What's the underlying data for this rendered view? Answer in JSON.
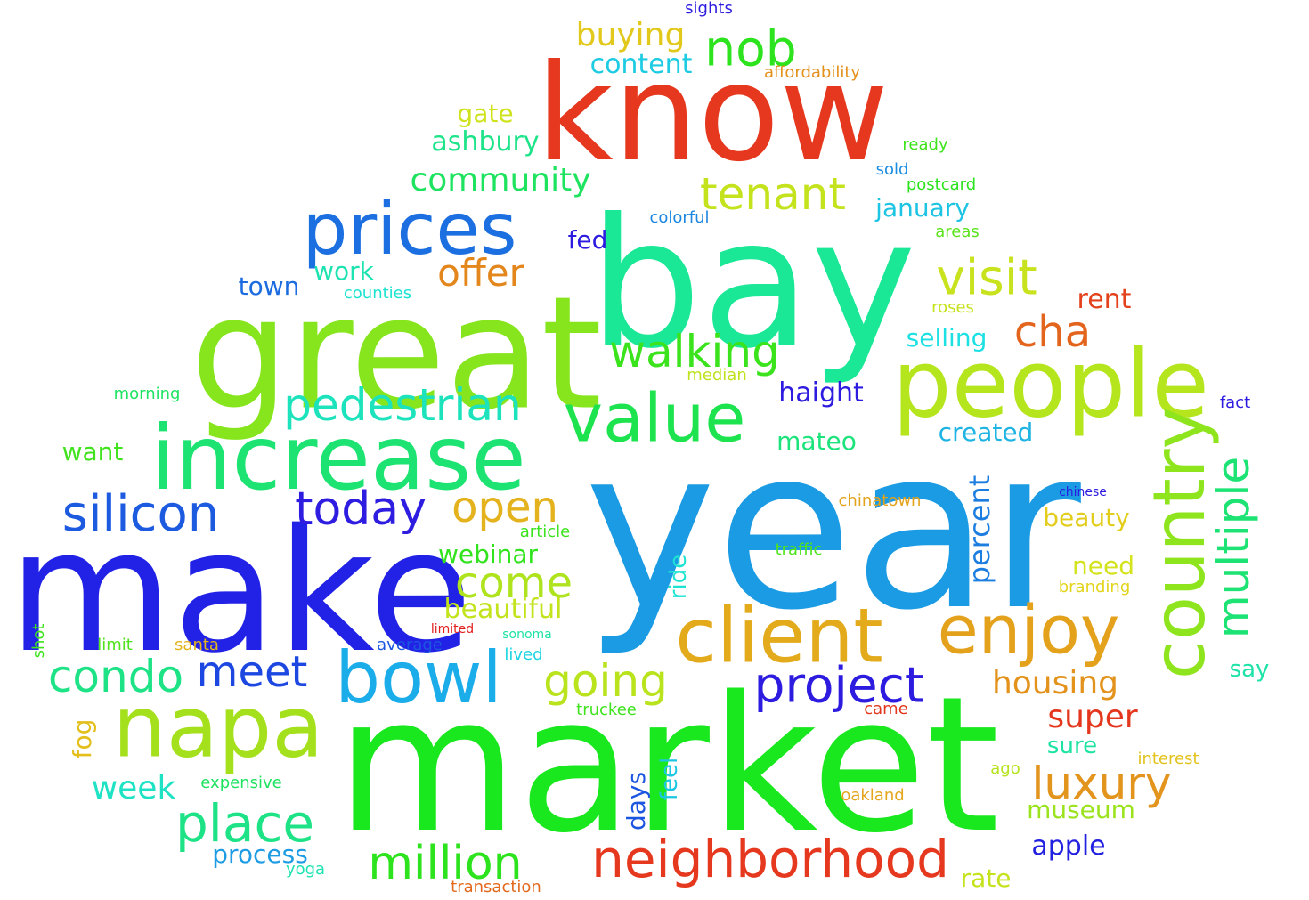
{
  "words": [
    {
      "text": "year",
      "color": "#1b9be3"
    },
    {
      "text": "market",
      "color": "#19e81e"
    },
    {
      "text": "make",
      "color": "#2222e6"
    },
    {
      "text": "know",
      "color": "#e5381e"
    },
    {
      "text": "bay",
      "color": "#1ae896"
    },
    {
      "text": "great",
      "color": "#86e51d"
    },
    {
      "text": "increase",
      "color": "#1de372"
    },
    {
      "text": "people",
      "color": "#b5e51d"
    },
    {
      "text": "prices",
      "color": "#1c6fe0"
    },
    {
      "text": "client",
      "color": "#e3ab1c"
    },
    {
      "text": "value",
      "color": "#1de34e"
    },
    {
      "text": "napa",
      "color": "#a5e01d"
    },
    {
      "text": "enjoy",
      "color": "#e3a11c"
    },
    {
      "text": "bowl",
      "color": "#1badea"
    },
    {
      "text": "country",
      "color": "#8fe51d"
    },
    {
      "text": "neighborhood",
      "color": "#e5381e"
    },
    {
      "text": "silicon",
      "color": "#1c5be0"
    },
    {
      "text": "project",
      "color": "#2d1ce0"
    },
    {
      "text": "pedestrian",
      "color": "#1de3bc"
    },
    {
      "text": "today",
      "color": "#2e1de0"
    },
    {
      "text": "multiple",
      "color": "#1de374"
    },
    {
      "text": "million",
      "color": "#2de31d"
    },
    {
      "text": "place",
      "color": "#1de386"
    },
    {
      "text": "condo",
      "color": "#1de386"
    },
    {
      "text": "nob",
      "color": "#2de31d"
    },
    {
      "text": "tenant",
      "color": "#c5e31d"
    },
    {
      "text": "visit",
      "color": "#c8e31d"
    },
    {
      "text": "meet",
      "color": "#1c47e0"
    },
    {
      "text": "open",
      "color": "#e3b21c"
    },
    {
      "text": "going",
      "color": "#b8e31d"
    },
    {
      "text": "come",
      "color": "#aee31d"
    },
    {
      "text": "luxury",
      "color": "#e3941c"
    },
    {
      "text": "walking",
      "color": "#3be31d"
    },
    {
      "text": "cha",
      "color": "#e3641c"
    },
    {
      "text": "offer",
      "color": "#e3861c"
    },
    {
      "text": "buying",
      "color": "#e3c81c"
    },
    {
      "text": "community",
      "color": "#1de35f"
    },
    {
      "text": "housing",
      "color": "#e3921c"
    },
    {
      "text": "super",
      "color": "#e3361c"
    },
    {
      "text": "week",
      "color": "#1de3c4"
    },
    {
      "text": "percent",
      "color": "#1c7de0"
    },
    {
      "text": "content",
      "color": "#1dcbe3"
    },
    {
      "text": "haight",
      "color": "#2d1ce0"
    },
    {
      "text": "beautiful",
      "color": "#c3e31d"
    },
    {
      "text": "ashbury",
      "color": "#1de389"
    },
    {
      "text": "apple",
      "color": "#2321e0"
    },
    {
      "text": "mateo",
      "color": "#1de37c"
    },
    {
      "text": "webinar",
      "color": "#31e31d"
    },
    {
      "text": "rent",
      "color": "#e3421c"
    },
    {
      "text": "january",
      "color": "#1dc4e3"
    },
    {
      "text": "created",
      "color": "#1db3e3"
    },
    {
      "text": "process",
      "color": "#1d9ce3"
    },
    {
      "text": "museum",
      "color": "#9ae31d"
    },
    {
      "text": "selling",
      "color": "#1de0e3"
    },
    {
      "text": "need",
      "color": "#d3e31d"
    },
    {
      "text": "beauty",
      "color": "#e3cd1c"
    },
    {
      "text": "fog",
      "color": "#e3bf1c"
    },
    {
      "text": "want",
      "color": "#40e31d"
    },
    {
      "text": "gate",
      "color": "#cfe31d"
    },
    {
      "text": "days",
      "color": "#1c55e0"
    },
    {
      "text": "fed",
      "color": "#2d1ce0"
    },
    {
      "text": "town",
      "color": "#1c6ce0"
    },
    {
      "text": "ride",
      "color": "#1de3d3"
    },
    {
      "text": "feel",
      "color": "#1dc7e3"
    },
    {
      "text": "say",
      "color": "#1de3a8"
    },
    {
      "text": "sure",
      "color": "#1de3a2"
    },
    {
      "text": "work",
      "color": "#1de3b1"
    },
    {
      "text": "rate",
      "color": "#c5e31d"
    },
    {
      "text": "colorful",
      "color": "#1c86e0"
    },
    {
      "text": "sights",
      "color": "#2d1ce0"
    },
    {
      "text": "affordability",
      "color": "#e3901c"
    },
    {
      "text": "ready",
      "color": "#3ee31d"
    },
    {
      "text": "sold",
      "color": "#1c8ce0"
    },
    {
      "text": "postcard",
      "color": "#2ce31d"
    },
    {
      "text": "areas",
      "color": "#5ce31d"
    },
    {
      "text": "counties",
      "color": "#1de3d0"
    },
    {
      "text": "roses",
      "color": "#c5e31d"
    },
    {
      "text": "morning",
      "color": "#1de361"
    },
    {
      "text": "median",
      "color": "#bde31d"
    },
    {
      "text": "fact",
      "color": "#2d1ce0"
    },
    {
      "text": "chinese",
      "color": "#2d1ce0"
    },
    {
      "text": "chinatown",
      "color": "#e3a31c"
    },
    {
      "text": "article",
      "color": "#3be31d"
    },
    {
      "text": "traffic",
      "color": "#4fe31d"
    },
    {
      "text": "branding",
      "color": "#e3d41c"
    },
    {
      "text": "limited",
      "color": "#e31c1c"
    },
    {
      "text": "sonoma",
      "color": "#1de3a3"
    },
    {
      "text": "average",
      "color": "#1c55e0"
    },
    {
      "text": "santa",
      "color": "#e3b41c"
    },
    {
      "text": "limit",
      "color": "#4fe31d"
    },
    {
      "text": "shot",
      "color": "#3ee31d"
    },
    {
      "text": "lived",
      "color": "#1dd5e3"
    },
    {
      "text": "truckee",
      "color": "#3ee31d"
    },
    {
      "text": "came",
      "color": "#e3361c"
    },
    {
      "text": "interest",
      "color": "#e3c21c"
    },
    {
      "text": "ago",
      "color": "#b5e31d"
    },
    {
      "text": "expensive",
      "color": "#1de361"
    },
    {
      "text": "oakland",
      "color": "#e3a61c"
    },
    {
      "text": "yoga",
      "color": "#1de3b2"
    },
    {
      "text": "transaction",
      "color": "#e3681c"
    }
  ]
}
